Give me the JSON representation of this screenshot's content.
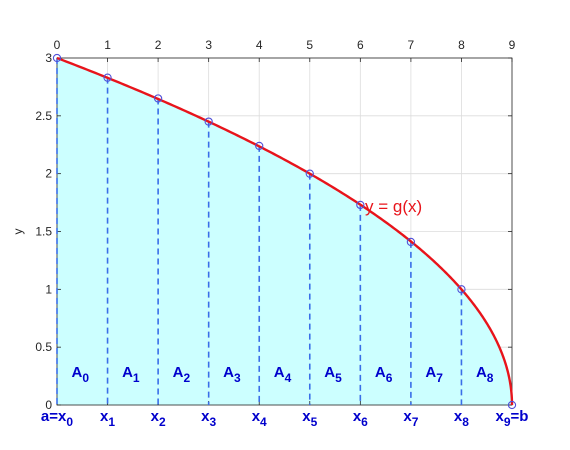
{
  "chart_data": {
    "type": "area",
    "xlim": [
      0,
      9
    ],
    "ylim": [
      0,
      3
    ],
    "x_ticks": [
      "0",
      "1",
      "2",
      "3",
      "4",
      "5",
      "6",
      "7",
      "8",
      "9"
    ],
    "y_ticks": [
      "0",
      "0.5",
      "1",
      "1.5",
      "2",
      "2.5",
      "3"
    ],
    "ylabel": "y",
    "grid": true,
    "x_tick_position": "top",
    "curve": {
      "label": "y = g(x)",
      "function": "sqrt(9 - x)",
      "color": "#e8141b"
    },
    "points": {
      "x": [
        0,
        1,
        2,
        3,
        4,
        5,
        6,
        7,
        8,
        9
      ],
      "y": [
        3,
        2.83,
        2.65,
        2.45,
        2.24,
        2.0,
        1.73,
        1.41,
        1.0,
        0
      ],
      "marker_color": "#5050d8"
    },
    "fill_color": "#ccffff",
    "partition_line_color": "#3a6ee8",
    "area_labels": [
      {
        "base": "A",
        "sub": "0"
      },
      {
        "base": "A",
        "sub": "1"
      },
      {
        "base": "A",
        "sub": "2"
      },
      {
        "base": "A",
        "sub": "3"
      },
      {
        "base": "A",
        "sub": "4"
      },
      {
        "base": "A",
        "sub": "5"
      },
      {
        "base": "A",
        "sub": "6"
      },
      {
        "base": "A",
        "sub": "7"
      },
      {
        "base": "A",
        "sub": "8"
      }
    ],
    "x_point_labels": [
      {
        "prefix": "a=",
        "base": "x",
        "sub": "0",
        "suffix": ""
      },
      {
        "prefix": "",
        "base": "x",
        "sub": "1",
        "suffix": ""
      },
      {
        "prefix": "",
        "base": "x",
        "sub": "2",
        "suffix": ""
      },
      {
        "prefix": "",
        "base": "x",
        "sub": "3",
        "suffix": ""
      },
      {
        "prefix": "",
        "base": "x",
        "sub": "4",
        "suffix": ""
      },
      {
        "prefix": "",
        "base": "x",
        "sub": "5",
        "suffix": ""
      },
      {
        "prefix": "",
        "base": "x",
        "sub": "6",
        "suffix": ""
      },
      {
        "prefix": "",
        "base": "x",
        "sub": "7",
        "suffix": ""
      },
      {
        "prefix": "",
        "base": "x",
        "sub": "8",
        "suffix": ""
      },
      {
        "prefix": "",
        "base": "x",
        "sub": "9",
        "suffix": "=b"
      }
    ],
    "label_color": "#0000cc"
  }
}
